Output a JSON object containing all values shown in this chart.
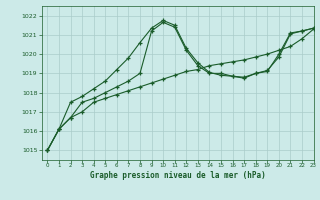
{
  "title": "Graphe pression niveau de la mer (hPa)",
  "background_color": "#cceae8",
  "grid_color": "#aaccca",
  "line_color": "#1a5c2a",
  "xlim": [
    -0.5,
    23
  ],
  "ylim": [
    1014.5,
    1022.5
  ],
  "yticks": [
    1015,
    1016,
    1017,
    1018,
    1019,
    1020,
    1021,
    1022
  ],
  "xticks": [
    0,
    1,
    2,
    3,
    4,
    5,
    6,
    7,
    8,
    9,
    10,
    11,
    12,
    13,
    14,
    15,
    16,
    17,
    18,
    19,
    20,
    21,
    22,
    23
  ],
  "series1_x": [
    0,
    1,
    2,
    3,
    4,
    5,
    6,
    7,
    8,
    9,
    10,
    11,
    12,
    13,
    14,
    15,
    16,
    17,
    18,
    19,
    20,
    21,
    22,
    23
  ],
  "series1_y": [
    1015.0,
    1016.1,
    1016.7,
    1017.0,
    1017.5,
    1017.7,
    1017.9,
    1018.1,
    1018.3,
    1018.5,
    1018.7,
    1018.9,
    1019.1,
    1019.2,
    1019.4,
    1019.5,
    1019.6,
    1019.7,
    1019.85,
    1020.0,
    1020.2,
    1020.4,
    1020.8,
    1021.3
  ],
  "series2_x": [
    0,
    1,
    2,
    3,
    4,
    5,
    6,
    7,
    8,
    9,
    10,
    11,
    12,
    13,
    14,
    15,
    16,
    17,
    18,
    19,
    20,
    21,
    22,
    23
  ],
  "series2_y": [
    1015.0,
    1016.1,
    1017.5,
    1017.8,
    1018.2,
    1018.6,
    1019.2,
    1019.8,
    1020.6,
    1021.35,
    1021.75,
    1021.5,
    1020.3,
    1019.55,
    1019.05,
    1018.9,
    1018.85,
    1018.75,
    1019.0,
    1019.15,
    1019.85,
    1021.05,
    1021.2,
    1021.35
  ],
  "series3_x": [
    0,
    1,
    2,
    3,
    4,
    5,
    6,
    7,
    8,
    9,
    10,
    11,
    12,
    13,
    14,
    15,
    16,
    17,
    18,
    19,
    20,
    21,
    22,
    23
  ],
  "series3_y": [
    1015.0,
    1016.1,
    1016.7,
    1017.5,
    1017.7,
    1018.0,
    1018.3,
    1018.6,
    1019.0,
    1021.2,
    1021.65,
    1021.4,
    1020.2,
    1019.4,
    1019.0,
    1019.0,
    1018.85,
    1018.8,
    1019.0,
    1019.1,
    1020.0,
    1021.1,
    1021.2,
    1021.35
  ]
}
